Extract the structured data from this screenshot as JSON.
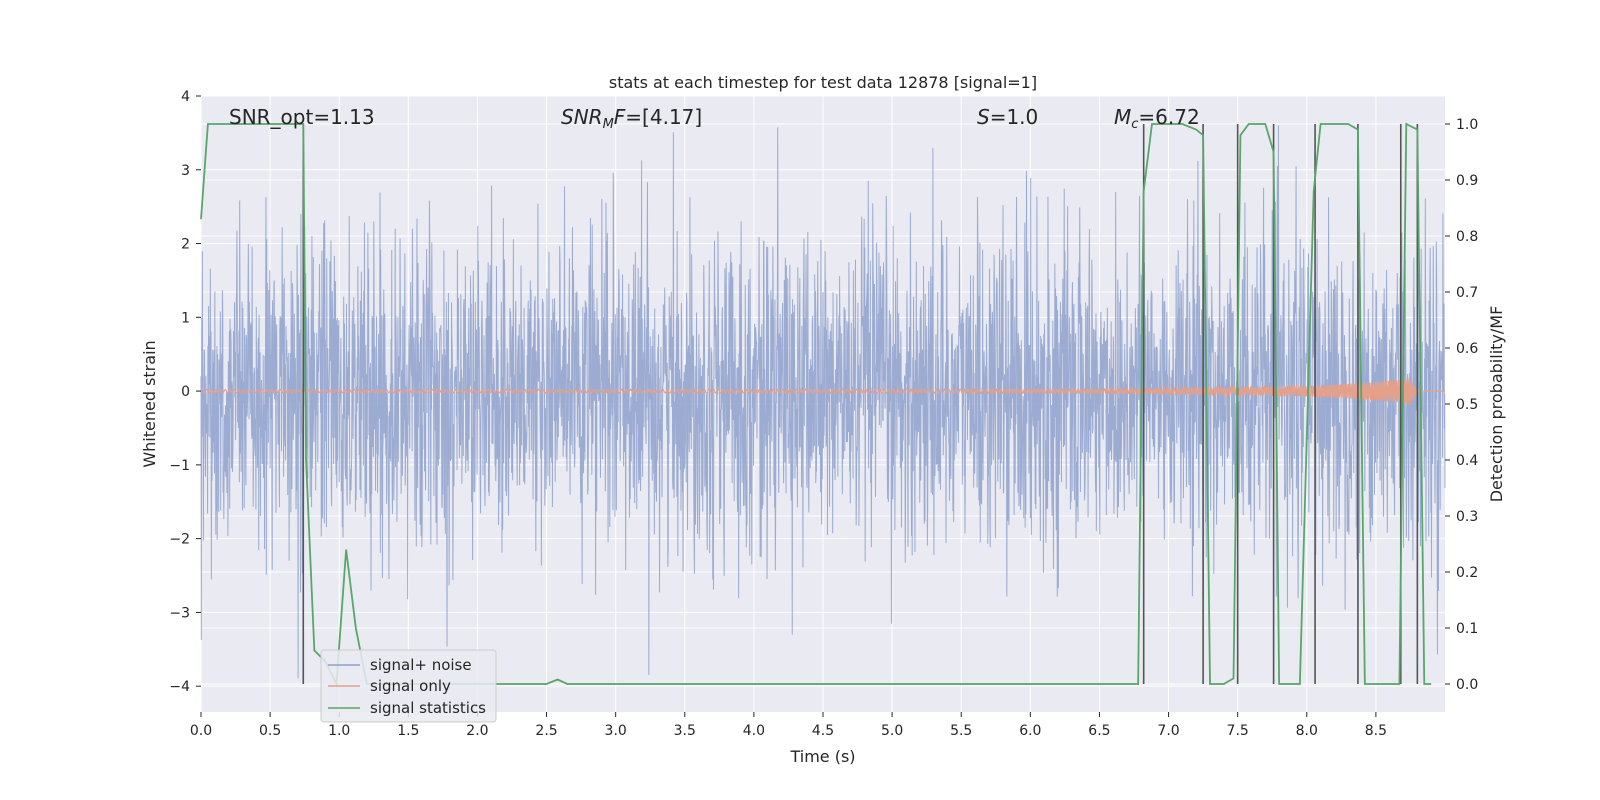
{
  "chart_data": {
    "type": "line",
    "title": "stats at each timestep for test data 12878 [signal=1]",
    "xlabel": "Time (s)",
    "ylabel": "Whitened strain",
    "ylabel_right": "Detection probability/MF",
    "xlim": [
      0.0,
      9.0
    ],
    "ylim": [
      -4.35,
      4.0
    ],
    "ylim_right": [
      -0.05,
      1.05
    ],
    "x_ticks": [
      "0.0",
      "0.5",
      "1.0",
      "1.5",
      "2.0",
      "2.5",
      "3.0",
      "3.5",
      "4.0",
      "4.5",
      "5.0",
      "5.5",
      "6.0",
      "6.5",
      "7.0",
      "7.5",
      "8.0",
      "8.5"
    ],
    "y_ticks": [
      "4",
      "3",
      "2",
      "1",
      "0",
      "−1",
      "−2",
      "−3",
      "−4"
    ],
    "y_right_ticks": [
      "1.0",
      "0.9",
      "0.8",
      "0.7",
      "0.6",
      "0.5",
      "0.4",
      "0.3",
      "0.2",
      "0.1",
      "0.0"
    ],
    "grid": true,
    "legend_position": "lower-left",
    "annotations": {
      "snr_opt": "SNR_opt=1.13",
      "snr_mf_var": "SNR",
      "snr_mf_sub": "M",
      "snr_mf_var2": "F",
      "snr_mf_val": "=[4.17]",
      "s_var": "S",
      "s_val": "=1.0",
      "mc_var": "M",
      "mc_sub": "c",
      "mc_val": "=6.72"
    },
    "series": [
      {
        "name": "signal+ noise",
        "color": "#8da0cb",
        "description_values": "noise band approximately between -2.5 and 2.5, spikes to about ±3.5",
        "amplitude_envelope": [
          -2.6,
          2.6
        ]
      },
      {
        "name": "signal only",
        "color": "#e5a08b",
        "chirp_x": [
          0,
          6.5,
          7.0,
          7.5,
          8.0,
          8.3,
          8.6,
          8.75,
          8.8
        ],
        "chirp_amplitude": [
          0.02,
          0.03,
          0.04,
          0.05,
          0.07,
          0.1,
          0.14,
          0.18,
          0.0
        ]
      },
      {
        "name": "signal statistics",
        "color": "#55a868",
        "axis": "right",
        "x": [
          0.0,
          0.05,
          0.1,
          0.15,
          0.2,
          0.3,
          0.4,
          0.5,
          0.6,
          0.7,
          0.74,
          0.76,
          0.82,
          0.9,
          0.98,
          1.05,
          1.12,
          1.2,
          1.3,
          1.5,
          2.0,
          2.5,
          2.58,
          2.65,
          2.7,
          3.0,
          4.0,
          5.0,
          6.0,
          6.7,
          6.78,
          6.82,
          6.88,
          6.95,
          7.1,
          7.2,
          7.25,
          7.3,
          7.4,
          7.47,
          7.52,
          7.58,
          7.7,
          7.76,
          7.8,
          7.9,
          7.95,
          8.05,
          8.1,
          8.3,
          8.37,
          8.42,
          8.6,
          8.67,
          8.72,
          8.8,
          8.85,
          8.9
        ],
        "y": [
          0.83,
          1.0,
          1.0,
          1.0,
          1.0,
          1.0,
          1.0,
          1.0,
          1.0,
          1.0,
          1.0,
          0.4,
          0.06,
          0.04,
          0.0,
          0.24,
          0.1,
          0.0,
          0.0,
          0.0,
          0.0,
          0.0,
          0.008,
          0.0,
          0.0,
          0.0,
          0.0,
          0.0,
          0.0,
          0.0,
          0.0,
          0.88,
          1.0,
          1.0,
          1.0,
          0.99,
          0.98,
          0.0,
          0.0,
          0.01,
          0.98,
          1.0,
          1.0,
          0.95,
          0.0,
          0.0,
          0.0,
          0.88,
          1.0,
          1.0,
          0.99,
          0.0,
          0.0,
          0.0,
          1.0,
          0.99,
          0.0,
          0.0
        ]
      }
    ],
    "vertical_markers_x": [
      0.74,
      6.82,
      7.25,
      7.5,
      7.76,
      8.06,
      8.37,
      8.68,
      8.8
    ]
  }
}
